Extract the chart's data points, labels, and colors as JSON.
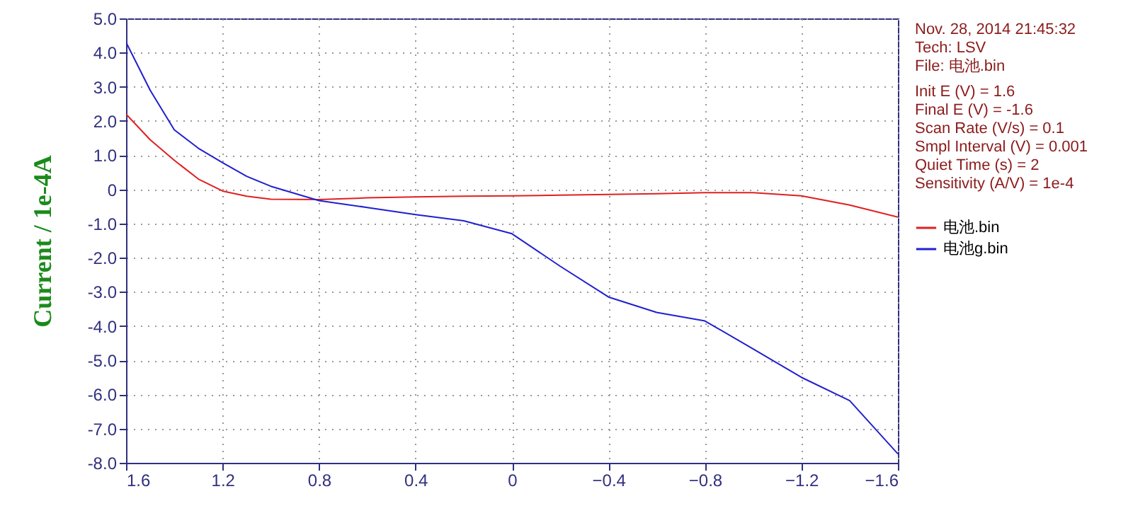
{
  "chart_data": {
    "type": "line",
    "ylabel": "Current / 1e-4A",
    "x": [
      1.6,
      1.5,
      1.4,
      1.3,
      1.2,
      1.1,
      1.0,
      0.8,
      0.6,
      0.4,
      0.2,
      0.0,
      -0.2,
      -0.4,
      -0.6,
      -0.8,
      -1.0,
      -1.2,
      -1.4,
      -1.6
    ],
    "series": [
      {
        "name": "电池.bin",
        "color": "#e02020",
        "values": [
          2.2,
          1.45,
          0.85,
          0.3,
          -0.05,
          -0.2,
          -0.29,
          -0.3,
          -0.25,
          -0.22,
          -0.2,
          -0.19,
          -0.17,
          -0.15,
          -0.13,
          -0.1,
          -0.1,
          -0.19,
          -0.46,
          -0.81
        ]
      },
      {
        "name": "电池g.bin",
        "color": "#2020d0",
        "values": [
          4.3,
          2.9,
          1.74,
          1.2,
          0.78,
          0.38,
          0.09,
          -0.33,
          -0.53,
          -0.74,
          -0.92,
          -1.3,
          -2.25,
          -3.15,
          -3.6,
          -3.85,
          -4.67,
          -5.5,
          -6.18,
          -7.74
        ]
      }
    ],
    "xlim": [
      1.6,
      -1.6
    ],
    "xticks": [
      1.6,
      1.2,
      0.8,
      0.4,
      {
        "value": 0,
        "label": "0"
      },
      -0.4,
      -0.8,
      -1.2,
      -1.6
    ],
    "ylim": [
      -8.0,
      5.0
    ],
    "yticks": [
      {
        "value": 5,
        "label": "5.0"
      },
      {
        "value": 4,
        "label": "4.0"
      },
      {
        "value": 3,
        "label": "3.0"
      },
      {
        "value": 2,
        "label": "2.0"
      },
      {
        "value": 1,
        "label": "1.0"
      },
      {
        "value": 0,
        "label": "0"
      },
      {
        "value": -1,
        "label": "-1.0"
      },
      {
        "value": -2,
        "label": "-2.0"
      },
      {
        "value": -3,
        "label": "-3.0"
      },
      {
        "value": -4,
        "label": "-4.0"
      },
      {
        "value": -5,
        "label": "-5.0"
      },
      {
        "value": -6,
        "label": "-6.0"
      },
      {
        "value": -7,
        "label": "-7.0"
      },
      {
        "value": -8,
        "label": "-8.0"
      }
    ],
    "grid": true,
    "legend": "right",
    "marker": "none",
    "line_style": "solid",
    "annotations": [
      "Nov. 28, 2014   21:45:32",
      "Tech: LSV",
      "File: 电池.bin",
      "Init E (V) = 1.6",
      "Final E (V) = -1.6",
      "Scan Rate (V/s) = 0.1",
      "Smpl Interval (V) = 0.001",
      "Quiet Time (s) = 2",
      "Sensitivity (A/V) = 1e-4"
    ]
  }
}
